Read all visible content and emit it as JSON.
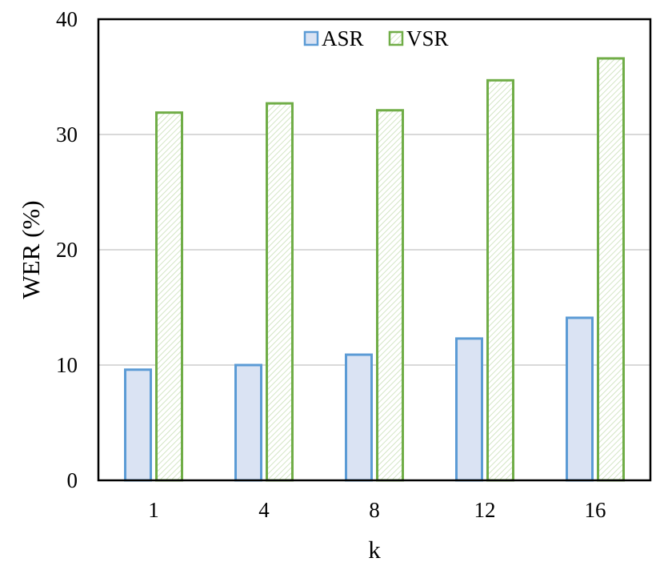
{
  "chart_data": {
    "type": "bar",
    "title": "",
    "xlabel": "k",
    "ylabel": "WER (%)",
    "categories": [
      "1",
      "4",
      "8",
      "12",
      "16"
    ],
    "ylim": [
      0,
      40
    ],
    "yticks": [
      0,
      10,
      20,
      30,
      40
    ],
    "grid": true,
    "legend_position": "top-center",
    "series": [
      {
        "name": "ASR",
        "values": [
          9.6,
          10.0,
          10.9,
          12.3,
          14.1
        ],
        "fill": "#dae3f3",
        "stroke": "#5b9bd5",
        "pattern": "solid"
      },
      {
        "name": "VSR",
        "values": [
          31.9,
          32.7,
          32.1,
          34.7,
          36.6
        ],
        "fill": "#ffffff",
        "stroke": "#70ad47",
        "pattern": "diagonal-hatch"
      }
    ]
  }
}
